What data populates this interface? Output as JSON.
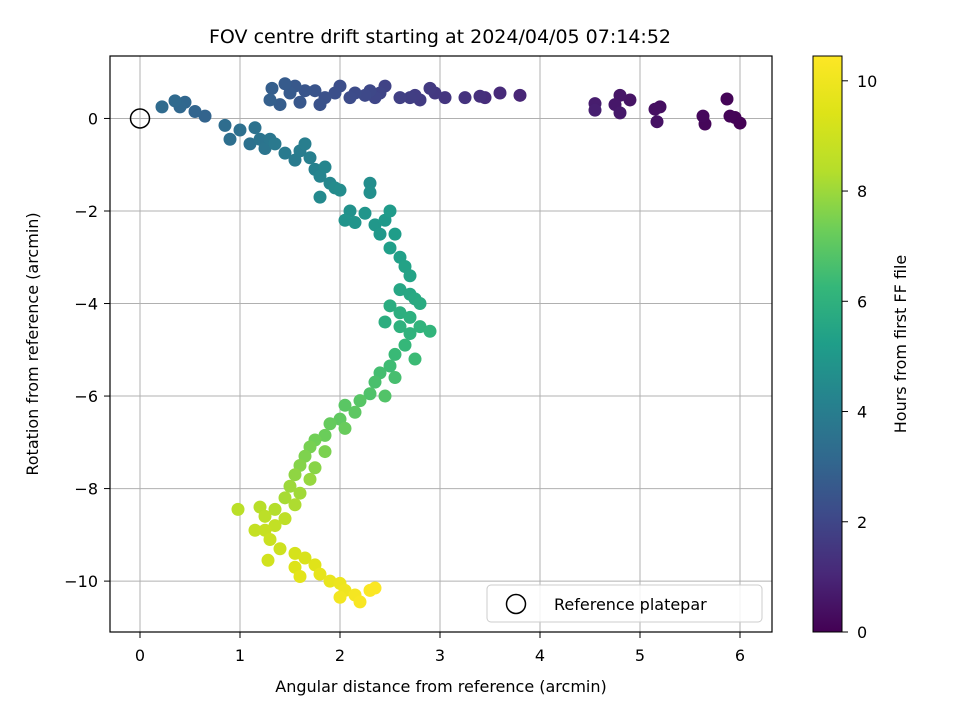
{
  "chart_data": {
    "type": "scatter",
    "title": "FOV centre drift starting at 2024/04/05 07:14:52",
    "xlabel": "Angular distance from reference (arcmin)",
    "ylabel": "Rotation from reference (arcmin)",
    "xlim": [
      -0.3,
      6.32
    ],
    "ylim": [
      -11.1,
      1.35
    ],
    "xticks": [
      0,
      1,
      2,
      3,
      4,
      5,
      6
    ],
    "yticks": [
      0,
      -2,
      -4,
      -6,
      -8,
      -10
    ],
    "grid": true,
    "colormap": "viridis",
    "colorbar": {
      "label": "Hours from first FF file",
      "min": 0,
      "max": 10.45,
      "ticks": [
        0,
        2,
        4,
        6,
        8,
        10
      ]
    },
    "reference": {
      "x": 0,
      "y": 0,
      "label": "Reference platepar"
    },
    "legend_location": "lower right",
    "points": [
      [
        6.0,
        -0.1,
        0.02
      ],
      [
        5.95,
        0.02,
        0.05
      ],
      [
        5.9,
        0.05,
        0.08
      ],
      [
        5.87,
        0.42,
        0.1
      ],
      [
        5.65,
        -0.12,
        0.15
      ],
      [
        5.63,
        0.05,
        0.2
      ],
      [
        5.2,
        0.25,
        0.35
      ],
      [
        5.15,
        0.2,
        0.4
      ],
      [
        5.17,
        -0.07,
        0.45
      ],
      [
        4.9,
        0.4,
        0.5
      ],
      [
        4.8,
        0.5,
        0.55
      ],
      [
        4.75,
        0.3,
        0.6
      ],
      [
        4.8,
        0.12,
        0.65
      ],
      [
        4.55,
        0.32,
        0.75
      ],
      [
        4.55,
        0.18,
        0.8
      ],
      [
        3.8,
        0.5,
        1.0
      ],
      [
        3.6,
        0.55,
        1.1
      ],
      [
        3.45,
        0.45,
        1.2
      ],
      [
        3.4,
        0.48,
        1.3
      ],
      [
        3.25,
        0.45,
        1.4
      ],
      [
        3.05,
        0.45,
        1.5
      ],
      [
        2.95,
        0.55,
        1.55
      ],
      [
        2.9,
        0.65,
        1.6
      ],
      [
        2.8,
        0.4,
        1.65
      ],
      [
        2.75,
        0.5,
        1.7
      ],
      [
        2.7,
        0.45,
        1.75
      ],
      [
        2.6,
        0.45,
        1.8
      ],
      [
        2.45,
        0.7,
        1.9
      ],
      [
        2.4,
        0.55,
        1.95
      ],
      [
        2.35,
        0.45,
        2.0
      ],
      [
        2.3,
        0.6,
        2.05
      ],
      [
        2.25,
        0.5,
        2.1
      ],
      [
        2.15,
        0.55,
        2.15
      ],
      [
        2.1,
        0.45,
        2.2
      ],
      [
        2.0,
        0.7,
        2.25
      ],
      [
        1.95,
        0.55,
        2.3
      ],
      [
        1.85,
        0.45,
        2.35
      ],
      [
        1.8,
        0.3,
        2.4
      ],
      [
        1.75,
        0.6,
        2.45
      ],
      [
        1.65,
        0.6,
        2.5
      ],
      [
        1.6,
        0.35,
        2.55
      ],
      [
        1.55,
        0.7,
        2.6
      ],
      [
        1.5,
        0.55,
        2.65
      ],
      [
        1.45,
        0.75,
        2.7
      ],
      [
        1.4,
        0.3,
        2.75
      ],
      [
        1.32,
        0.65,
        2.8
      ],
      [
        1.3,
        0.4,
        2.85
      ],
      [
        0.65,
        0.05,
        3.0
      ],
      [
        0.55,
        0.15,
        3.05
      ],
      [
        0.45,
        0.35,
        3.1
      ],
      [
        0.4,
        0.25,
        3.15
      ],
      [
        0.35,
        0.38,
        3.2
      ],
      [
        0.22,
        0.25,
        3.25
      ],
      [
        0.85,
        -0.15,
        3.35
      ],
      [
        0.9,
        -0.45,
        3.4
      ],
      [
        1.0,
        -0.25,
        3.45
      ],
      [
        1.1,
        -0.55,
        3.5
      ],
      [
        1.15,
        -0.2,
        3.55
      ],
      [
        1.2,
        -0.45,
        3.6
      ],
      [
        1.25,
        -0.65,
        3.65
      ],
      [
        1.3,
        -0.45,
        3.7
      ],
      [
        1.35,
        -0.55,
        3.8
      ],
      [
        1.45,
        -0.75,
        3.85
      ],
      [
        1.55,
        -0.9,
        3.9
      ],
      [
        1.6,
        -0.7,
        3.95
      ],
      [
        1.65,
        -0.55,
        4.0
      ],
      [
        1.7,
        -0.85,
        4.05
      ],
      [
        1.75,
        -1.1,
        4.15
      ],
      [
        1.8,
        -1.25,
        4.25
      ],
      [
        1.85,
        -1.05,
        4.3
      ],
      [
        1.9,
        -1.4,
        4.35
      ],
      [
        1.8,
        -1.7,
        4.45
      ],
      [
        1.95,
        -1.5,
        4.5
      ],
      [
        2.0,
        -1.55,
        4.55
      ],
      [
        2.3,
        -1.4,
        4.6
      ],
      [
        2.3,
        -1.6,
        4.65
      ],
      [
        2.1,
        -2.0,
        4.75
      ],
      [
        2.05,
        -2.2,
        4.8
      ],
      [
        2.15,
        -2.25,
        4.85
      ],
      [
        2.25,
        -2.05,
        4.9
      ],
      [
        2.35,
        -2.3,
        4.95
      ],
      [
        2.4,
        -2.5,
        5.0
      ],
      [
        2.45,
        -2.2,
        5.05
      ],
      [
        2.5,
        -2.0,
        5.1
      ],
      [
        2.55,
        -2.5,
        5.2
      ],
      [
        2.5,
        -2.8,
        5.25
      ],
      [
        2.6,
        -3.0,
        5.3
      ],
      [
        2.65,
        -3.2,
        5.4
      ],
      [
        2.7,
        -3.4,
        5.45
      ],
      [
        2.6,
        -3.7,
        5.55
      ],
      [
        2.7,
        -3.8,
        5.6
      ],
      [
        2.75,
        -3.9,
        5.7
      ],
      [
        2.8,
        -4.0,
        5.75
      ],
      [
        2.5,
        -4.05,
        5.8
      ],
      [
        2.45,
        -4.4,
        5.85
      ],
      [
        2.6,
        -4.2,
        5.9
      ],
      [
        2.7,
        -4.3,
        5.95
      ],
      [
        2.6,
        -4.5,
        6.0
      ],
      [
        2.7,
        -4.65,
        6.05
      ],
      [
        2.8,
        -4.5,
        6.1
      ],
      [
        2.9,
        -4.6,
        6.15
      ],
      [
        2.65,
        -4.9,
        6.25
      ],
      [
        2.55,
        -5.1,
        6.35
      ],
      [
        2.75,
        -5.2,
        6.4
      ],
      [
        2.5,
        -5.35,
        6.45
      ],
      [
        2.4,
        -5.5,
        6.55
      ],
      [
        2.55,
        -5.6,
        6.6
      ],
      [
        2.35,
        -5.7,
        6.65
      ],
      [
        2.3,
        -5.95,
        6.75
      ],
      [
        2.45,
        -6.0,
        6.8
      ],
      [
        2.2,
        -6.1,
        6.9
      ],
      [
        2.05,
        -6.2,
        6.95
      ],
      [
        2.15,
        -6.35,
        7.0
      ],
      [
        2.0,
        -6.5,
        7.05
      ],
      [
        1.9,
        -6.6,
        7.15
      ],
      [
        2.05,
        -6.7,
        7.2
      ],
      [
        1.85,
        -6.85,
        7.25
      ],
      [
        1.75,
        -6.95,
        7.35
      ],
      [
        1.7,
        -7.1,
        7.45
      ],
      [
        1.85,
        -7.2,
        7.5
      ],
      [
        1.65,
        -7.3,
        7.55
      ],
      [
        1.6,
        -7.5,
        7.65
      ],
      [
        1.75,
        -7.55,
        7.7
      ],
      [
        1.55,
        -7.7,
        7.8
      ],
      [
        1.7,
        -7.8,
        7.9
      ],
      [
        1.5,
        -7.95,
        8.0
      ],
      [
        1.6,
        -8.1,
        8.05
      ],
      [
        1.45,
        -8.2,
        8.15
      ],
      [
        1.55,
        -8.35,
        8.25
      ],
      [
        1.35,
        -8.45,
        8.35
      ],
      [
        1.2,
        -8.4,
        8.45
      ],
      [
        0.98,
        -8.45,
        8.5
      ],
      [
        1.25,
        -8.6,
        8.55
      ],
      [
        1.45,
        -8.65,
        8.6
      ],
      [
        1.35,
        -8.8,
        8.7
      ],
      [
        1.15,
        -8.9,
        8.75
      ],
      [
        1.25,
        -8.9,
        8.8
      ],
      [
        1.3,
        -9.1,
        8.9
      ],
      [
        1.4,
        -9.3,
        9.0
      ],
      [
        1.28,
        -9.55,
        9.1
      ],
      [
        1.55,
        -9.4,
        9.2
      ],
      [
        1.65,
        -9.5,
        9.3
      ],
      [
        1.55,
        -9.7,
        9.4
      ],
      [
        1.75,
        -9.65,
        9.5
      ],
      [
        1.6,
        -9.9,
        9.6
      ],
      [
        1.8,
        -9.85,
        9.7
      ],
      [
        1.9,
        -10.0,
        9.8
      ],
      [
        2.0,
        -10.05,
        9.9
      ],
      [
        2.05,
        -10.2,
        10.0
      ],
      [
        2.0,
        -10.35,
        10.1
      ],
      [
        2.15,
        -10.3,
        10.2
      ],
      [
        2.2,
        -10.45,
        10.3
      ],
      [
        2.3,
        -10.2,
        10.35
      ],
      [
        2.35,
        -10.15,
        10.4
      ]
    ]
  }
}
